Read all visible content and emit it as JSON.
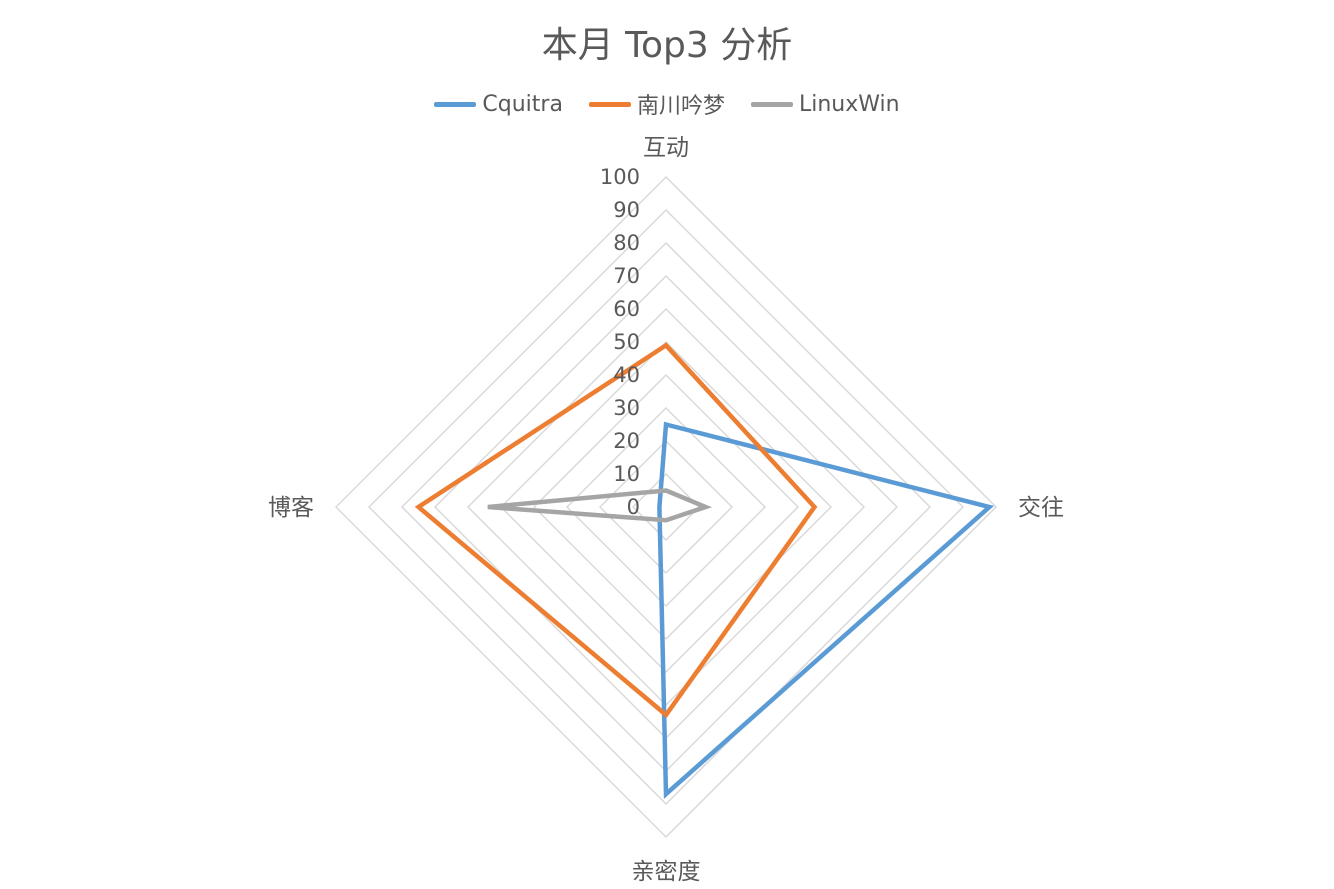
{
  "chart_data": {
    "type": "radar",
    "title": "本月 Top3 分析",
    "axes": [
      "互动",
      "交往",
      "亲密度",
      "博客"
    ],
    "rlim": [
      0,
      100
    ],
    "ticks": [
      0,
      10,
      20,
      30,
      40,
      50,
      60,
      70,
      80,
      90,
      100
    ],
    "grid": true,
    "legend": "top",
    "series": [
      {
        "name": "Cquitra",
        "color": "#5b9bd5",
        "values": [
          25,
          98,
          87,
          2
        ]
      },
      {
        "name": "南川吟梦",
        "color": "#ed7d31",
        "values": [
          49,
          45,
          63,
          75
        ]
      },
      {
        "name": "LinuxWin",
        "color": "#a5a5a5",
        "values": [
          5,
          12,
          4,
          54
        ]
      }
    ]
  }
}
